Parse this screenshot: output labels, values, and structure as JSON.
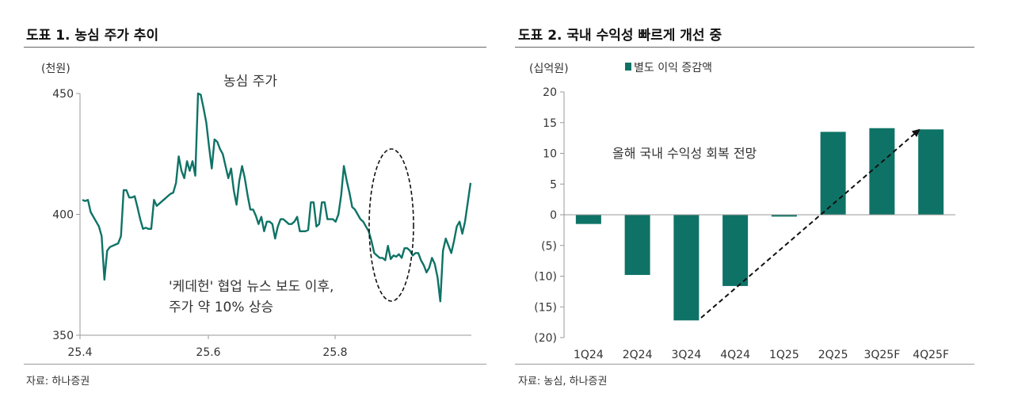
{
  "colors": {
    "series": "#0e7366",
    "axis": "#999999",
    "text": "#333333",
    "annotation": "#111111"
  },
  "left": {
    "title": "도표 1. 농심 주가 추이",
    "source": "자료: 하나증권",
    "chart_data": {
      "type": "line",
      "unit_label": "(천원)",
      "series_label": "농심 주가",
      "ylim": [
        350,
        450
      ],
      "y_ticks": [
        350,
        400,
        450
      ],
      "x_ticks": [
        {
          "x": 0,
          "label": "25.4"
        },
        {
          "x": 162,
          "label": "25.6"
        },
        {
          "x": 322,
          "label": "25.8"
        }
      ],
      "x_max": 490,
      "annotation_text": [
        "'케데헌' 협업 뉴스 보도 이후,",
        "주가 약 10% 상승"
      ],
      "values": [
        406,
        405.5,
        406,
        401,
        399,
        397,
        395,
        391,
        373,
        385,
        386.5,
        387,
        387.5,
        388,
        391,
        410,
        410,
        407,
        407,
        407.5,
        403,
        398,
        394,
        394.5,
        394,
        394,
        406,
        403.5,
        404.5,
        405.5,
        406.5,
        407.5,
        408.5,
        409,
        413,
        424,
        418,
        415,
        422,
        418,
        422,
        416,
        450,
        449.5,
        444,
        438,
        428,
        419,
        431,
        430,
        427,
        425,
        420,
        415,
        419,
        410,
        404,
        414,
        420,
        415,
        408,
        402,
        402,
        399.5,
        396,
        399,
        393,
        397,
        397,
        396,
        390,
        395,
        398,
        398,
        397,
        396,
        396,
        397,
        399,
        393,
        393,
        393,
        393.5,
        405,
        405,
        395,
        396,
        405,
        405,
        398,
        398,
        398,
        397,
        400,
        408,
        420,
        414,
        409,
        403,
        402,
        400,
        398,
        397,
        395,
        393,
        389,
        384,
        383,
        382,
        382,
        381,
        387,
        381.5,
        383,
        382.5,
        383.5,
        382,
        386,
        386,
        385,
        383,
        384,
        384,
        381,
        379,
        376,
        378,
        382,
        379.5,
        374,
        364,
        385,
        390,
        387,
        384,
        389,
        395,
        397,
        392,
        397,
        405,
        413
      ]
    }
  },
  "right": {
    "title": "도표 2. 국내 수익성 빠르게 개선 중",
    "source": "자료: 농심, 하나증권",
    "chart_data": {
      "type": "bar",
      "unit_label": "(십억원)",
      "legend": "별도 이익 증감액",
      "legend_position": "top",
      "categories": [
        "1Q24",
        "2Q24",
        "3Q24",
        "4Q24",
        "1Q25",
        "2Q25",
        "3Q25F",
        "4Q25F"
      ],
      "values": [
        -1.5,
        -9.8,
        -17.2,
        -11.6,
        -0.3,
        13.5,
        14.1,
        13.9
      ],
      "ylim": [
        -20,
        20
      ],
      "y_ticks": [
        20,
        15,
        10,
        5,
        0,
        -5,
        -10,
        -15,
        -20
      ],
      "y_tick_labels": [
        "20",
        "15",
        "10",
        "5",
        "0",
        "(5)",
        "(10)",
        "(15)",
        "(20)"
      ],
      "annotation_text": "올해 국내 수익성 회복 전망"
    }
  }
}
